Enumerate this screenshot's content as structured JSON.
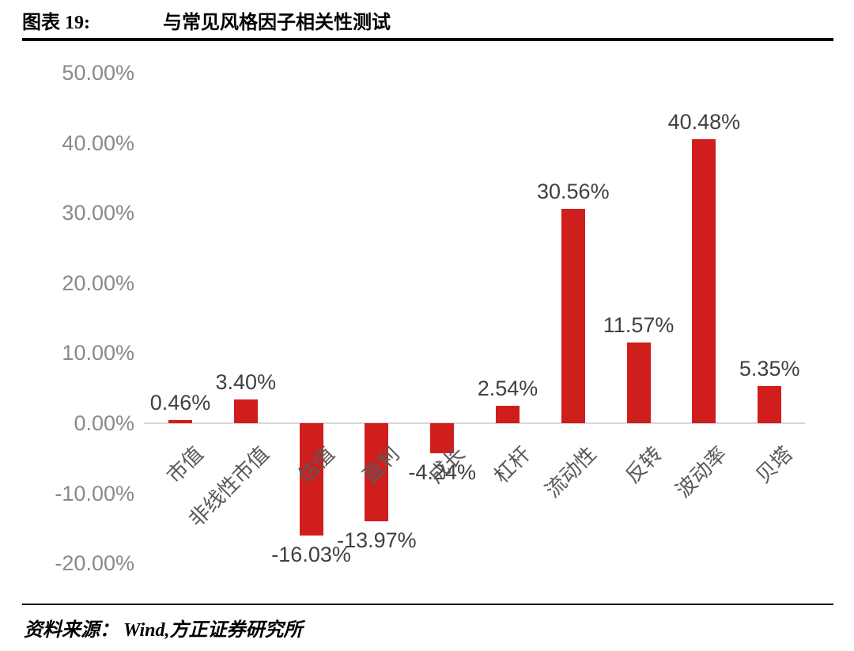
{
  "header": {
    "figure_label": "图表 19:",
    "title": "与常见风格因子相关性测试"
  },
  "footer": {
    "source": "资料来源： Wind,方正证券研究所"
  },
  "chart_data": {
    "type": "bar",
    "title": "与常见风格因子相关性测试",
    "categories": [
      "市值",
      "非线性市值",
      "估值",
      "盈利",
      "成长",
      "杠杆",
      "流动性",
      "反转",
      "波动率",
      "贝塔"
    ],
    "values": [
      0.46,
      3.4,
      -16.03,
      -13.97,
      -4.24,
      2.54,
      30.56,
      11.57,
      40.48,
      5.35
    ],
    "value_labels": [
      "0.46%",
      "3.40%",
      "-16.03%",
      "-13.97%",
      "-4.24%",
      "2.54%",
      "30.56%",
      "11.57%",
      "40.48%",
      "5.35%"
    ],
    "y_ticks": [
      "50.00%",
      "40.00%",
      "30.00%",
      "20.00%",
      "10.00%",
      "0.00%",
      "-10.00%",
      "-20.00%"
    ],
    "y_tick_values": [
      50,
      40,
      30,
      20,
      10,
      0,
      -10,
      -20
    ],
    "ylim": [
      -20,
      50
    ],
    "xlabel": "",
    "ylabel": "",
    "legend_position": "none",
    "grid": "zero-axis-only",
    "bar_color": "#cf1e1c",
    "axis_line_color": "#d8d8d8",
    "tick_label_color": "#8a8a8a",
    "value_label_color": "#404040",
    "category_label_color": "#595959"
  }
}
